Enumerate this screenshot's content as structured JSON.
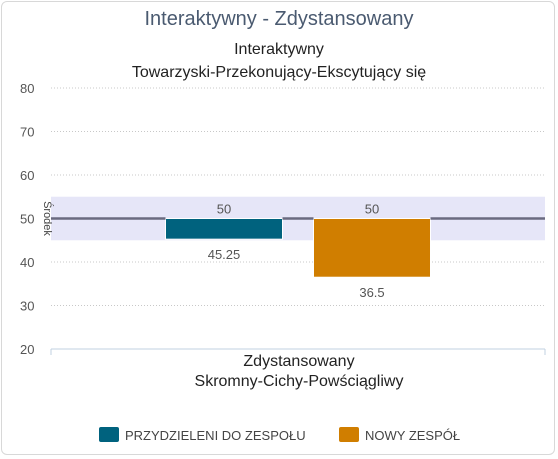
{
  "chart_data": {
    "type": "bar",
    "title": "Interaktywny - Zdystansowany",
    "top_label": [
      "Interaktywny",
      "Towarzyski-Przekonujący-Ekscytujący się"
    ],
    "bottom_label": [
      "Zdystansowany",
      "Skromny-Cichy-Powściągliwy"
    ],
    "band_label": "Środek",
    "baseline": 50,
    "band_range": [
      45,
      55
    ],
    "ylim": [
      20,
      85
    ],
    "yticks": [
      80,
      70,
      60,
      50,
      40,
      30,
      20
    ],
    "grid": true,
    "legend_position": "bottom",
    "series": [
      {
        "name": "PRZYDZIELENI DO ZESPOŁU",
        "value": 45.25,
        "baseline_label": "50",
        "value_label": "45.25",
        "color": "#00627e"
      },
      {
        "name": "NOWY ZESPÓŁ",
        "value": 36.5,
        "baseline_label": "50",
        "value_label": "36.5",
        "color": "#d07e00"
      }
    ]
  }
}
